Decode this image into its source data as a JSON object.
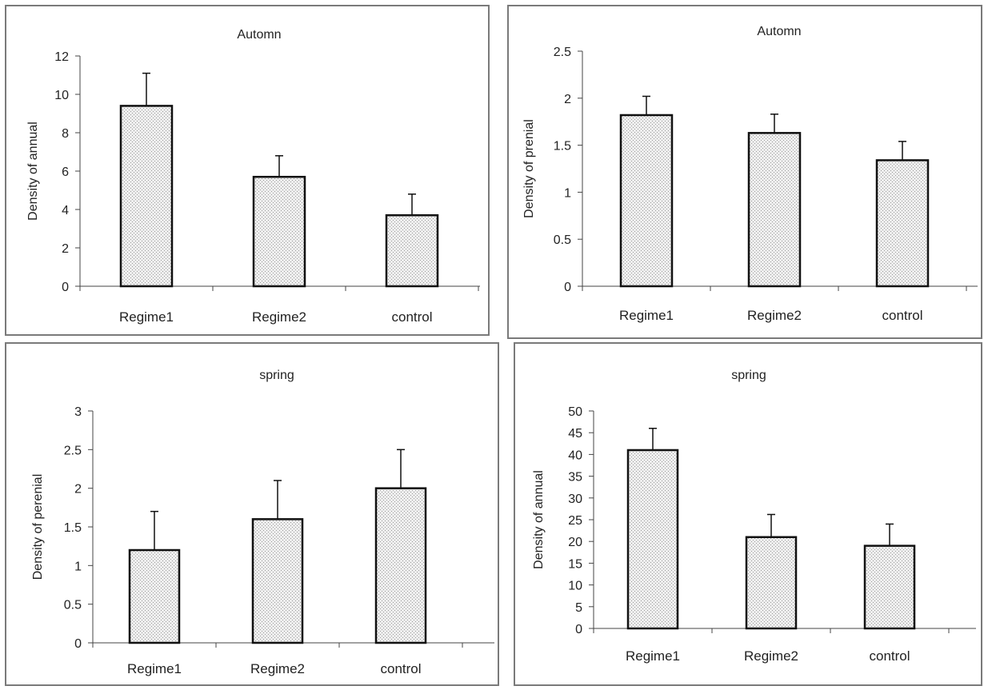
{
  "colors": {
    "bar_fill": "#eeeeee",
    "bar_dots": "#9a9a9a",
    "stroke": "#111111",
    "axis": "#444444",
    "border": "#7a7a7a"
  },
  "chart_data": [
    {
      "type": "bar",
      "title": "Automn",
      "xlabel": "",
      "ylabel": "Density of annual",
      "categories": [
        "Regime1",
        "Regime2",
        "control"
      ],
      "values": [
        9.4,
        5.7,
        3.7
      ],
      "errors": [
        1.7,
        1.1,
        1.1
      ],
      "ylim": [
        0,
        12
      ],
      "yticks": [
        0,
        2,
        4,
        6,
        8,
        10,
        12
      ],
      "ytick_labels": [
        "0",
        "2",
        "4",
        "6",
        "8",
        "10",
        "12"
      ],
      "grid": false,
      "legend": "none"
    },
    {
      "type": "bar",
      "title": "Automn",
      "xlabel": "",
      "ylabel": "Density of prenial",
      "categories": [
        "Regime1",
        "Regime2",
        "control"
      ],
      "values": [
        1.82,
        1.63,
        1.34
      ],
      "errors": [
        0.2,
        0.2,
        0.2
      ],
      "ylim": [
        0,
        2.5
      ],
      "yticks": [
        0,
        0.5,
        1,
        1.5,
        2,
        2.5
      ],
      "ytick_labels": [
        "0",
        "0.5",
        "1",
        "1.5",
        "2",
        "2.5"
      ],
      "grid": false,
      "legend": "none"
    },
    {
      "type": "bar",
      "title": "spring",
      "xlabel": "",
      "ylabel": "Density of perenial",
      "categories": [
        "Regime1",
        "Regime2",
        "control"
      ],
      "values": [
        1.2,
        1.6,
        2.0
      ],
      "errors": [
        0.5,
        0.5,
        0.5
      ],
      "ylim": [
        0,
        3
      ],
      "yticks": [
        0,
        0.5,
        1,
        1.5,
        2,
        2.5,
        3
      ],
      "ytick_labels": [
        "0",
        "0.5",
        "1",
        "1.5",
        "2",
        "2.5",
        "3"
      ],
      "grid": false,
      "legend": "none"
    },
    {
      "type": "bar",
      "title": "spring",
      "xlabel": "",
      "ylabel": "Density of annual",
      "categories": [
        "Regime1",
        "Regime2",
        "control"
      ],
      "values": [
        41,
        21,
        19
      ],
      "errors": [
        5,
        5.2,
        5
      ],
      "ylim": [
        0,
        50
      ],
      "yticks": [
        0,
        5,
        10,
        15,
        20,
        25,
        30,
        35,
        40,
        45,
        50
      ],
      "ytick_labels": [
        "0",
        "5",
        "10",
        "15",
        "20",
        "25",
        "30",
        "35",
        "40",
        "45",
        "50"
      ],
      "grid": false,
      "legend": "none"
    }
  ]
}
